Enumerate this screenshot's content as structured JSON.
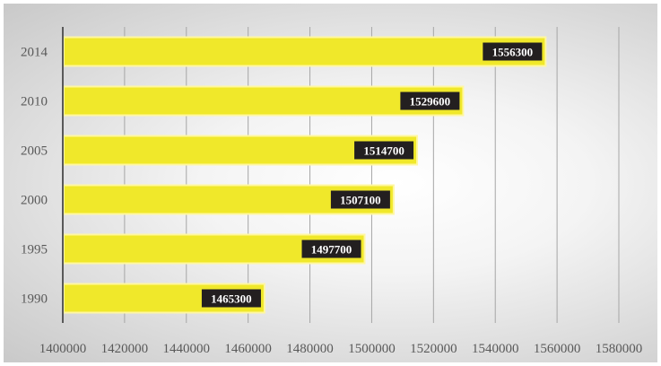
{
  "chart_data": {
    "type": "bar",
    "orientation": "horizontal",
    "title": "",
    "xlabel": "",
    "ylabel": "",
    "categories": [
      "1990",
      "1995",
      "2000",
      "2005",
      "2010",
      "2014"
    ],
    "values": [
      1465300,
      1497700,
      1507100,
      1514700,
      1529600,
      1556300
    ],
    "data_labels": [
      "1465300",
      "1497700",
      "1507100",
      "1514700",
      "1529600",
      "1556300"
    ],
    "xlim": [
      1400000,
      1580000
    ],
    "xticks": [
      1400000,
      1420000,
      1440000,
      1460000,
      1480000,
      1500000,
      1520000,
      1540000,
      1560000,
      1580000
    ],
    "xtick_labels": [
      "1400000",
      "1420000",
      "1440000",
      "1460000",
      "1480000",
      "1500000",
      "1520000",
      "1540000",
      "1560000",
      "1580000"
    ],
    "grid": true,
    "legend": "none",
    "colors": {
      "bar": "#f0e82a",
      "bar_edge": "#fff7a0",
      "label_bg": "#231f20",
      "label_text": "#ffffff",
      "grid": "#a6a6a6",
      "axis": "#595959"
    }
  }
}
